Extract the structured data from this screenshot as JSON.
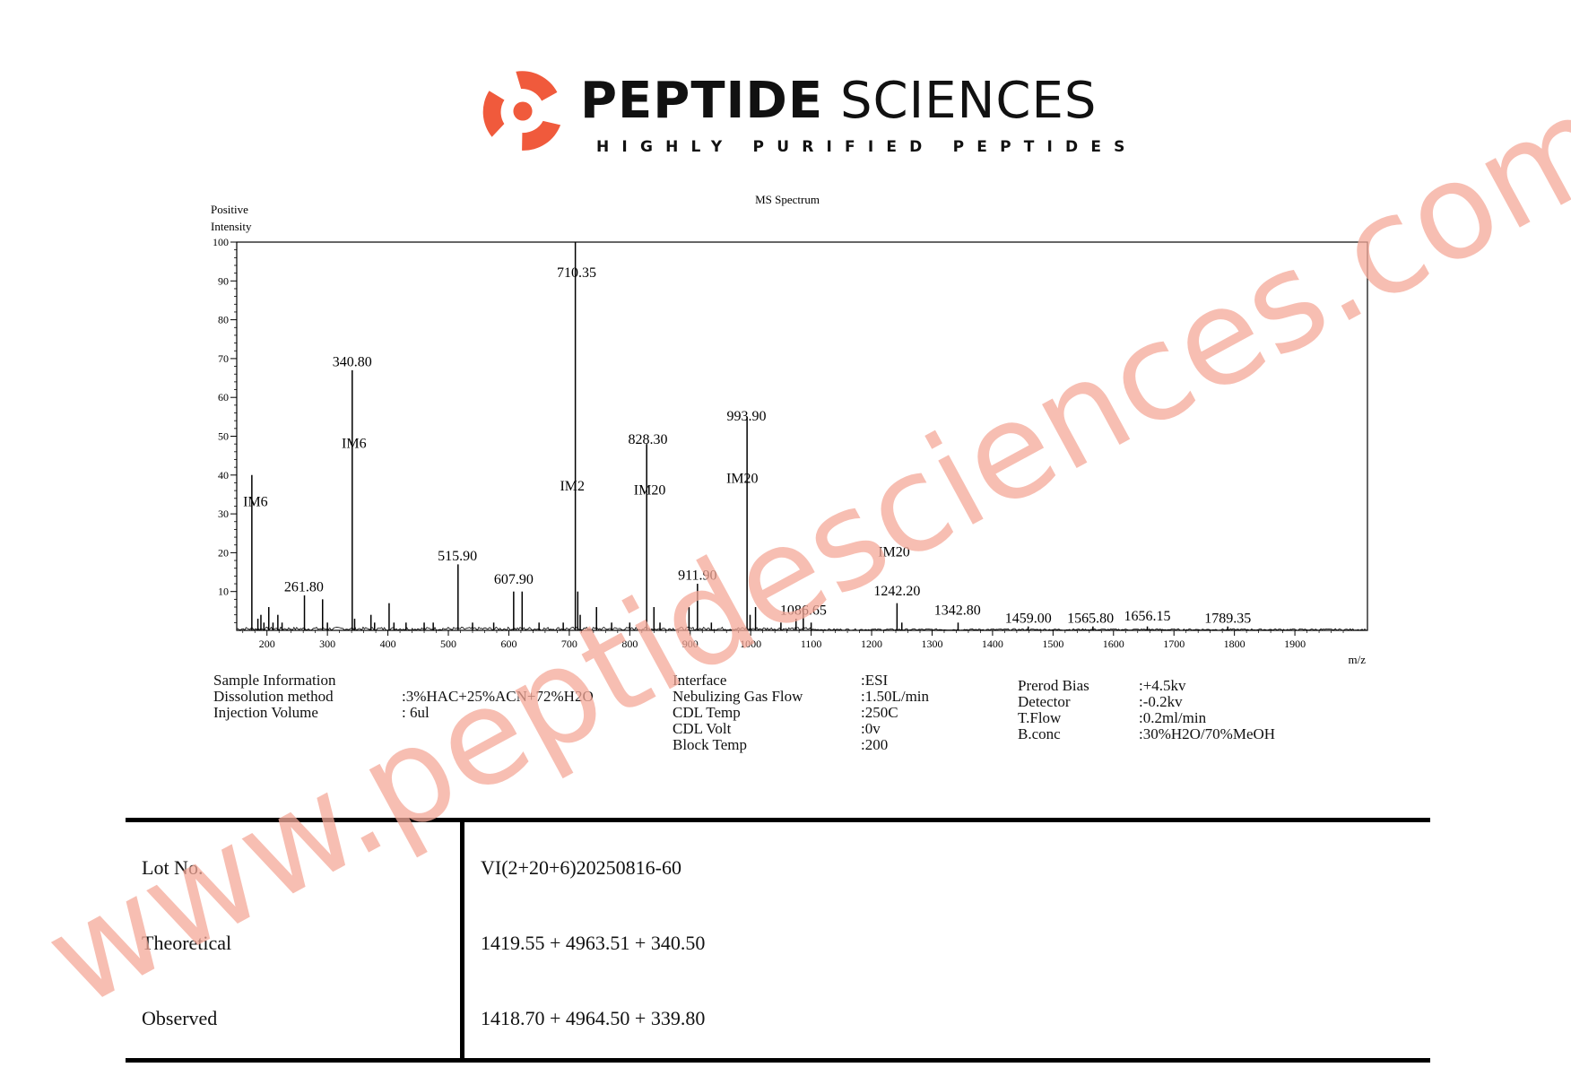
{
  "header": {
    "brand_bold": "PEPTIDE",
    "brand_light": "SCIENCES",
    "tagline": "HIGHLY PURIFIED PEPTIDES",
    "logo_icon": "peptide-sciences-swirl-logo",
    "brand_color": "#f05a3c"
  },
  "chart_data": {
    "type": "line",
    "title": "MS Spectrum",
    "ylabel_line1": "Positive",
    "ylabel_line2": "Intensity",
    "xlabel": "m/z",
    "xlim": [
      150,
      2020
    ],
    "ylim": [
      0,
      100
    ],
    "x_ticks": [
      200,
      300,
      400,
      500,
      600,
      700,
      800,
      900,
      1000,
      1100,
      1200,
      1300,
      1400,
      1500,
      1600,
      1700,
      1800,
      1900
    ],
    "y_ticks": [
      10,
      20,
      30,
      40,
      50,
      60,
      70,
      80,
      90,
      100
    ],
    "line_color": "#000000",
    "peaks": [
      {
        "x": 175,
        "y": 40
      },
      {
        "x": 185,
        "y": 3
      },
      {
        "x": 190,
        "y": 4
      },
      {
        "x": 195,
        "y": 2
      },
      {
        "x": 203,
        "y": 6
      },
      {
        "x": 210,
        "y": 2
      },
      {
        "x": 218,
        "y": 4
      },
      {
        "x": 225,
        "y": 2
      },
      {
        "x": 262,
        "y": 9
      },
      {
        "x": 292,
        "y": 8
      },
      {
        "x": 300,
        "y": 2
      },
      {
        "x": 341,
        "y": 67
      },
      {
        "x": 345,
        "y": 3
      },
      {
        "x": 372,
        "y": 4
      },
      {
        "x": 378,
        "y": 2
      },
      {
        "x": 402,
        "y": 7
      },
      {
        "x": 410,
        "y": 2
      },
      {
        "x": 430,
        "y": 2
      },
      {
        "x": 460,
        "y": 2
      },
      {
        "x": 475,
        "y": 2
      },
      {
        "x": 516,
        "y": 17
      },
      {
        "x": 540,
        "y": 2
      },
      {
        "x": 575,
        "y": 2
      },
      {
        "x": 608,
        "y": 10
      },
      {
        "x": 622,
        "y": 10
      },
      {
        "x": 650,
        "y": 2
      },
      {
        "x": 690,
        "y": 2
      },
      {
        "x": 710,
        "y": 100
      },
      {
        "x": 714,
        "y": 10
      },
      {
        "x": 718,
        "y": 4
      },
      {
        "x": 745,
        "y": 6
      },
      {
        "x": 770,
        "y": 2
      },
      {
        "x": 800,
        "y": 2
      },
      {
        "x": 828,
        "y": 48
      },
      {
        "x": 840,
        "y": 6
      },
      {
        "x": 850,
        "y": 2
      },
      {
        "x": 898,
        "y": 6
      },
      {
        "x": 912,
        "y": 12
      },
      {
        "x": 935,
        "y": 2
      },
      {
        "x": 994,
        "y": 55
      },
      {
        "x": 999,
        "y": 4
      },
      {
        "x": 1008,
        "y": 6
      },
      {
        "x": 1050,
        "y": 2
      },
      {
        "x": 1075,
        "y": 3
      },
      {
        "x": 1087,
        "y": 6
      },
      {
        "x": 1100,
        "y": 2
      },
      {
        "x": 1242,
        "y": 7
      },
      {
        "x": 1250,
        "y": 2
      },
      {
        "x": 1343,
        "y": 2
      },
      {
        "x": 1459,
        "y": 1
      },
      {
        "x": 1566,
        "y": 1
      },
      {
        "x": 1656,
        "y": 1
      },
      {
        "x": 1789,
        "y": 1
      }
    ],
    "labels": [
      {
        "text": "IM6",
        "x": 181,
        "y": 32
      },
      {
        "text": "261.80",
        "x": 261,
        "y": 10
      },
      {
        "text": "340.80",
        "x": 341,
        "y": 68
      },
      {
        "text": "IM6",
        "x": 344,
        "y": 47
      },
      {
        "text": "515.90",
        "x": 515,
        "y": 18
      },
      {
        "text": "607.90",
        "x": 608,
        "y": 12
      },
      {
        "text": "710.35",
        "x": 712,
        "y": 91
      },
      {
        "text": "IM2",
        "x": 705,
        "y": 36
      },
      {
        "text": "828.30",
        "x": 830,
        "y": 48
      },
      {
        "text": "IM20",
        "x": 833,
        "y": 35
      },
      {
        "text": "911.90",
        "x": 912,
        "y": 13
      },
      {
        "text": "993.90",
        "x": 993,
        "y": 54
      },
      {
        "text": "IM20",
        "x": 986,
        "y": 38
      },
      {
        "text": "1086.65",
        "x": 1087,
        "y": 4
      },
      {
        "text": "IM20",
        "x": 1237,
        "y": 19
      },
      {
        "text": "1242.20",
        "x": 1242,
        "y": 9
      },
      {
        "text": "1342.80",
        "x": 1342,
        "y": 4
      },
      {
        "text": "1459.00",
        "x": 1459,
        "y": 2
      },
      {
        "text": "1565.80",
        "x": 1562,
        "y": 2
      },
      {
        "text": "1656.15",
        "x": 1656,
        "y": 2.5
      },
      {
        "text": "1789.35",
        "x": 1789,
        "y": 2
      }
    ]
  },
  "sample_info": {
    "col1": [
      {
        "label": "Sample Information",
        "value": ""
      },
      {
        "label": "Dissolution method",
        "value": ":3%HAC+25%ACN+72%H2O"
      },
      {
        "label": "Injection Volume",
        "value": ": 6ul"
      }
    ],
    "col2": [
      {
        "label": "Interface",
        "value": ":ESI"
      },
      {
        "label": "Nebulizing Gas Flow",
        "value": ":1.50L/min"
      },
      {
        "label": "CDL Temp",
        "value": ":250C"
      },
      {
        "label": "CDL Volt",
        "value": ":0v"
      },
      {
        "label": "Block Temp",
        "value": ":200"
      }
    ],
    "col3": [
      {
        "label": "Prerod Bias",
        "value": ":+4.5kv"
      },
      {
        "label": "Detector",
        "value": ":-0.2kv"
      },
      {
        "label": "T.Flow",
        "value": ":0.2ml/min"
      },
      {
        "label": "B.conc",
        "value": ":30%H2O/70%MeOH"
      }
    ]
  },
  "results_table": {
    "rows": [
      {
        "label": "Lot No.",
        "value": "VI(2+20+6)20250816-60"
      },
      {
        "label": "Theoretical",
        "value": "1419.55 + 4963.51 + 340.50"
      },
      {
        "label": "Observed",
        "value": "1418.70 + 4964.50 + 339.80"
      }
    ]
  },
  "watermark": {
    "text": "www.peptidesciences.com",
    "color": "#f4a898"
  }
}
